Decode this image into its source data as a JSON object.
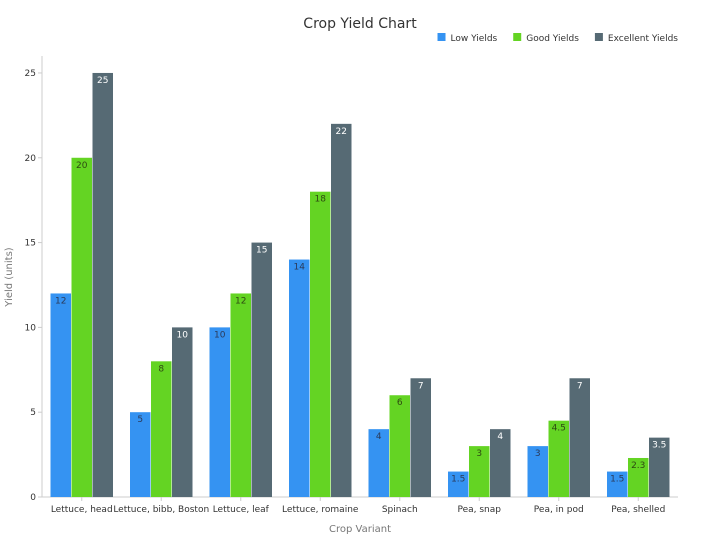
{
  "chart_data": {
    "type": "bar",
    "title": "Crop Yield Chart",
    "xlabel": "Crop Variant",
    "ylabel": "Yield (units)",
    "ylim": [
      0,
      26
    ],
    "yticks": [
      0,
      5,
      10,
      15,
      20,
      25
    ],
    "grid": false,
    "legend_position": "top-right",
    "categories": [
      "Lettuce, head",
      "Lettuce, bibb, Boston",
      "Lettuce, leaf",
      "Lettuce, romaine",
      "Spinach",
      "Pea, snap",
      "Pea, in pod",
      "Pea, shelled"
    ],
    "series": [
      {
        "name": "Low Yields",
        "color": "#3593f2",
        "label_color": "#2a3a5a",
        "values": [
          12,
          5,
          10,
          14,
          4,
          1.5,
          3,
          1.5
        ]
      },
      {
        "name": "Good Yields",
        "color": "#64d423",
        "label_color": "#2e4a12",
        "values": [
          20,
          8,
          12,
          18,
          6,
          3,
          4.5,
          2.3
        ]
      },
      {
        "name": "Excellent Yields",
        "color": "#566a74",
        "label_color": "#ffffff",
        "values": [
          25,
          10,
          15,
          22,
          7,
          4,
          7,
          3.5
        ]
      }
    ]
  }
}
